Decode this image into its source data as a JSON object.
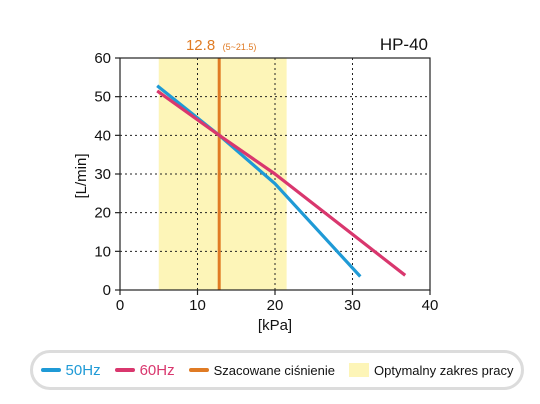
{
  "chart_data": {
    "type": "line",
    "title": "HP-40",
    "xlabel": "[kPa]",
    "ylabel": "[L/min]",
    "xlim": [
      0,
      40
    ],
    "ylim": [
      0,
      60
    ],
    "x_ticks": [
      0,
      10,
      20,
      30,
      40
    ],
    "y_ticks": [
      0,
      10,
      20,
      30,
      40,
      50,
      60
    ],
    "grid": "dotted",
    "series": [
      {
        "name": "50Hz",
        "color": "#1f9ad6",
        "x": [
          4.8,
          12.8,
          20,
          31
        ],
        "y": [
          52.8,
          40,
          27.5,
          3.5
        ]
      },
      {
        "name": "60Hz",
        "color": "#d9376e",
        "x": [
          4.8,
          12.8,
          20,
          36.8
        ],
        "y": [
          51.5,
          40,
          30,
          3.8
        ]
      }
    ],
    "estimated_pressure": {
      "value": 12.8,
      "label": "12.8",
      "range_label": "(5~21.5)",
      "color": "#e07b24"
    },
    "optimal_range": {
      "from": 5,
      "to": 21.5,
      "color": "#fdf5b8"
    },
    "legend": {
      "position": "bottom",
      "items": [
        {
          "label": "50Hz",
          "kind": "line",
          "color": "#1f9ad6"
        },
        {
          "label": "60Hz",
          "kind": "line",
          "color": "#d9376e"
        },
        {
          "label": "Szacowane ciśnienie",
          "kind": "line",
          "color": "#e07b24"
        },
        {
          "label": "Optymalny zakres pracy",
          "kind": "box",
          "color": "#fdf5b8"
        }
      ]
    }
  }
}
